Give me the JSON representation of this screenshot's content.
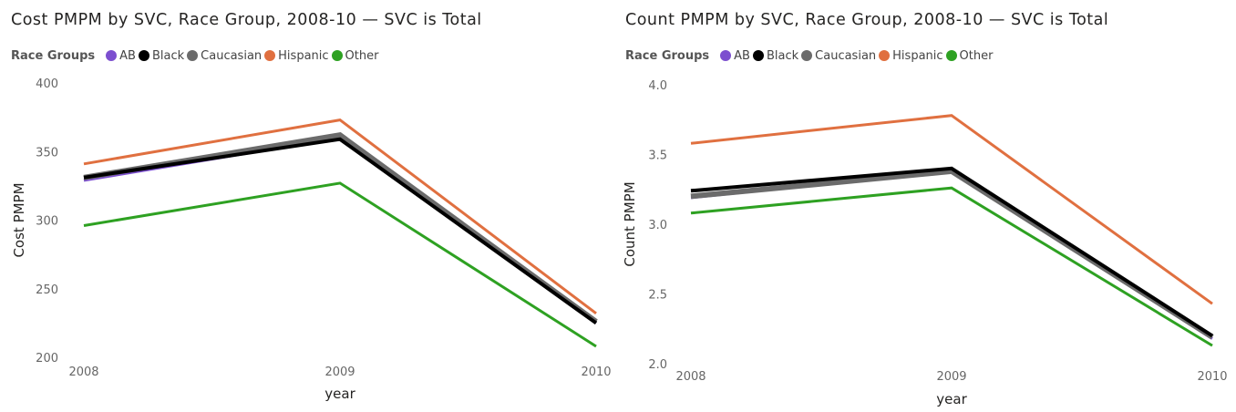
{
  "chart_data": [
    {
      "type": "line",
      "title": "Cost PMPM by SVC, Race Group, 2008-10 — SVC is Total",
      "legend_title": "Race Groups",
      "xlabel": "year",
      "ylabel": "Cost PMPM",
      "x": [
        "2008",
        "2009",
        "2010"
      ],
      "ylim": [
        200,
        400
      ],
      "yticks": [
        "200",
        "250",
        "300",
        "350",
        "400"
      ],
      "grid": false,
      "legend_position": "top-left",
      "series": [
        {
          "name": "AB",
          "color": "#7c4fcf",
          "values": [
            329,
            360,
            225
          ]
        },
        {
          "name": "Black",
          "color": "#000000",
          "values": [
            331,
            359,
            225
          ]
        },
        {
          "name": "Caucasian",
          "color": "#6b6b6b",
          "values": [
            331,
            362,
            226
          ]
        },
        {
          "name": "Hispanic",
          "color": "#e07040",
          "values": [
            341,
            373,
            232
          ]
        },
        {
          "name": "Other",
          "color": "#2ea122",
          "values": [
            296,
            327,
            208
          ]
        }
      ]
    },
    {
      "type": "line",
      "title": "Count PMPM by SVC, Race Group, 2008-10 — SVC is Total",
      "legend_title": "Race Groups",
      "xlabel": "year",
      "ylabel": "Count PMPM",
      "x": [
        "2008",
        "2009",
        "2010"
      ],
      "ylim": [
        2.0,
        4.0
      ],
      "yticks": [
        "2.0",
        "2.5",
        "3.0",
        "3.5",
        "4.0"
      ],
      "grid": false,
      "legend_position": "top-left",
      "series": [
        {
          "name": "AB",
          "color": "#7c4fcf",
          "values": [
            3.19,
            3.38,
            2.18
          ]
        },
        {
          "name": "Black",
          "color": "#000000",
          "values": [
            3.24,
            3.4,
            2.2
          ]
        },
        {
          "name": "Caucasian",
          "color": "#6b6b6b",
          "values": [
            3.2,
            3.38,
            2.19
          ]
        },
        {
          "name": "Hispanic",
          "color": "#e07040",
          "values": [
            3.58,
            3.78,
            2.43
          ]
        },
        {
          "name": "Other",
          "color": "#2ea122",
          "values": [
            3.08,
            3.26,
            2.13
          ]
        }
      ]
    }
  ]
}
